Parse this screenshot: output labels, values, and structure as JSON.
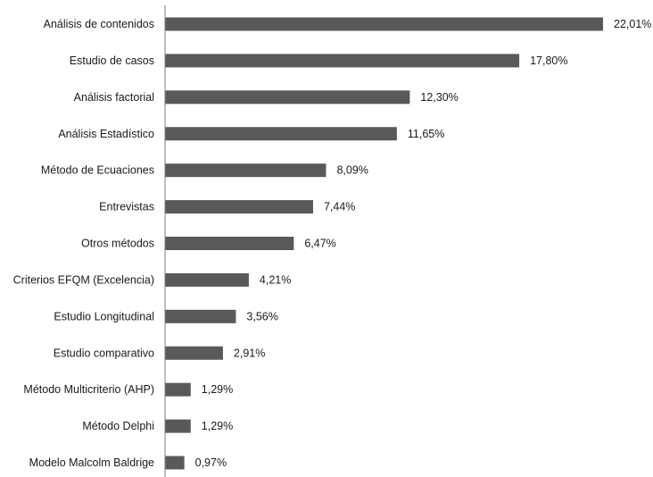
{
  "chart_data": {
    "type": "bar",
    "orientation": "horizontal",
    "title": "",
    "xlabel": "",
    "ylabel": "",
    "xlim": [
      0,
      22.01
    ],
    "grid": false,
    "legend": "none",
    "bar_color": "#595959",
    "categories": [
      "Análisis de contenidos",
      "Estudio de casos",
      "Análisis factorial",
      "Análisis Estadístico",
      "Método de Ecuaciones",
      "Entrevistas",
      "Otros métodos",
      "Criterios EFQM (Excelencia)",
      "Estudio Longitudinal",
      "Estudio comparativo",
      "Método Multicriterio (AHP)",
      "Método Delphi",
      "Modelo Malcolm Baldrige"
    ],
    "values": [
      22.01,
      17.8,
      12.3,
      11.65,
      8.09,
      7.44,
      6.47,
      4.21,
      3.56,
      2.91,
      1.29,
      1.29,
      0.97
    ],
    "data_labels": [
      "22,01%",
      "17,80%",
      "12,30%",
      "11,65%",
      "8,09%",
      "7,44%",
      "6,47%",
      "4,21%",
      "3,56%",
      "2,91%",
      "1,29%",
      "1,29%",
      "0,97%"
    ]
  }
}
